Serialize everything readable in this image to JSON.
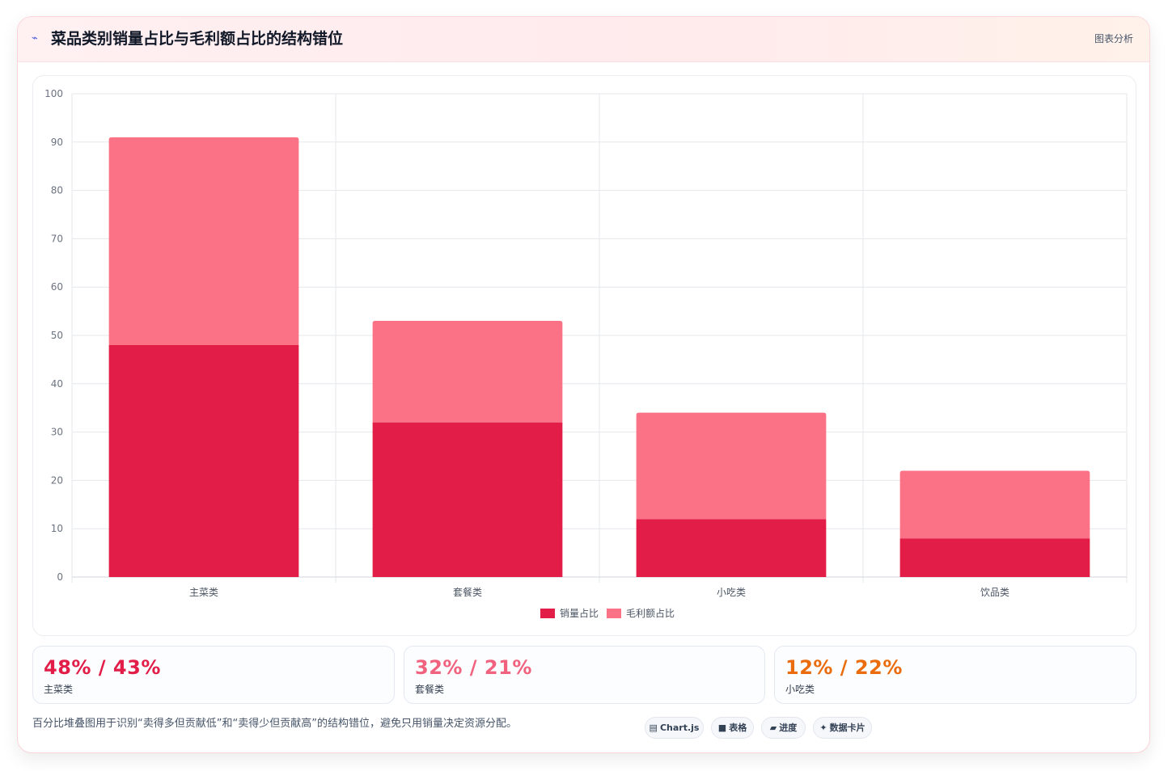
{
  "header": {
    "icon": "chart-line-icon",
    "title": "菜品类别销量占比与毛利额占比的结构错位",
    "right_label": "图表分析"
  },
  "chart_data": {
    "type": "bar",
    "stacked": true,
    "categories": [
      "主菜类",
      "套餐类",
      "小吃类",
      "饮品类"
    ],
    "series": [
      {
        "name": "销量占比",
        "values": [
          48,
          32,
          12,
          8
        ],
        "color": "#e11d48"
      },
      {
        "name": "毛利额占比",
        "values": [
          43,
          21,
          22,
          14
        ],
        "color": "#fb7185"
      }
    ],
    "ylim": [
      0,
      100
    ],
    "yticks": [
      "0",
      "10",
      "20",
      "30",
      "40",
      "50",
      "60",
      "70",
      "80",
      "90",
      "100"
    ],
    "grid": true,
    "legend_position": "bottom"
  },
  "stats": [
    {
      "value": "48% / 43%",
      "label": "主菜类",
      "color": "#e11d48"
    },
    {
      "value": "32% / 21%",
      "label": "套餐类",
      "color": "#f0627e"
    },
    {
      "value": "12% / 22%",
      "label": "小吃类",
      "color": "#ea6c0c"
    }
  ],
  "footnote": "百分比堆叠图用于识别“卖得多但贡献低”和“卖得少但贡献高”的结构错位，避免只用销量决定资源分配。",
  "tags": [
    {
      "icon": "▤",
      "label": "Chart.js"
    },
    {
      "icon": "■",
      "label": "表格"
    },
    {
      "icon": "▰",
      "label": "进度"
    },
    {
      "icon": "✦",
      "label": "数据卡片"
    }
  ]
}
